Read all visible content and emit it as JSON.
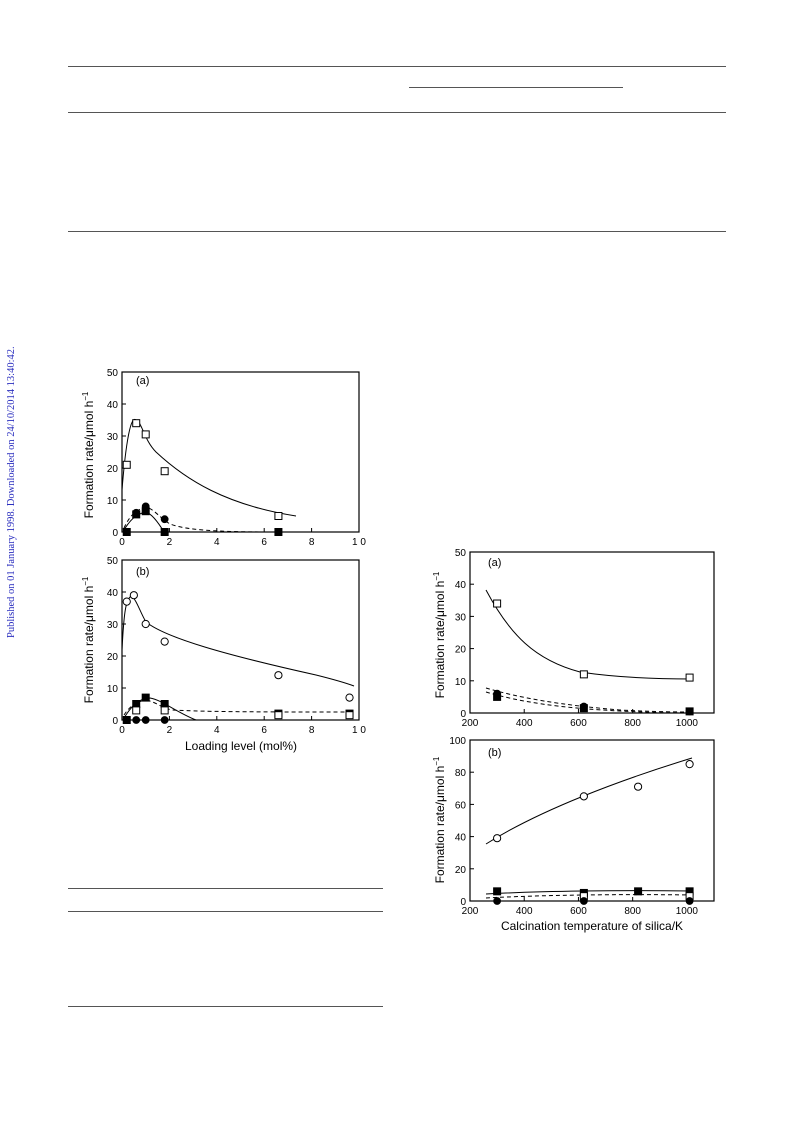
{
  "side_note": "Published on 01 January 1998. Downloaded on 24/10/2014 13:40:42.",
  "figures": {
    "left": {
      "ylabel": "Formation rate/μmol h",
      "ylabel_sup": "−1",
      "xlabel": "Loading level (mol%)",
      "x_ticks": [
        "0",
        "2",
        "4",
        "6",
        "8",
        "1 0"
      ]
    },
    "right": {
      "ylabel": "Formation rate/μmol h",
      "ylabel_sup": "−1",
      "xlabel": "Calcination temperature of silica/K",
      "x_ticks": [
        "200",
        "400",
        "600",
        "800",
        "1000"
      ]
    }
  },
  "chart_data": [
    {
      "type": "scatter",
      "panel_label": "(a)",
      "xlim": [
        0,
        10
      ],
      "ylim": [
        0,
        50
      ],
      "y_ticks": [
        "0",
        "10",
        "20",
        "30",
        "40",
        "50"
      ],
      "series": [
        {
          "marker": "open-square",
          "x": [
            0.2,
            0.6,
            1.0,
            1.8,
            6.6
          ],
          "y": [
            21,
            34,
            30.5,
            19,
            5
          ]
        },
        {
          "marker": "filled-circle",
          "x": [
            0.6,
            1.0,
            1.8
          ],
          "y": [
            6,
            8,
            4
          ]
        },
        {
          "marker": "filled-square",
          "x": [
            0.2,
            0.6,
            1.0,
            1.8,
            6.6
          ],
          "y": [
            0,
            5.5,
            6.5,
            0,
            0
          ]
        }
      ]
    },
    {
      "type": "scatter",
      "panel_label": "(b)",
      "xlim": [
        0,
        10
      ],
      "ylim": [
        0,
        50
      ],
      "y_ticks": [
        "0",
        "10",
        "20",
        "30",
        "40",
        "50"
      ],
      "series": [
        {
          "marker": "open-circle",
          "x": [
            0.2,
            0.5,
            1.0,
            1.8,
            6.6,
            9.6
          ],
          "y": [
            37,
            39,
            30,
            24.5,
            14,
            7
          ]
        },
        {
          "marker": "filled-square",
          "x": [
            0.2,
            0.6,
            1.0,
            1.8,
            6.6,
            9.6
          ],
          "y": [
            0,
            5,
            7,
            5,
            2,
            2
          ]
        },
        {
          "marker": "open-square",
          "x": [
            0.6,
            1.8,
            6.6,
            9.6
          ],
          "y": [
            3,
            3,
            1.5,
            1.5
          ]
        },
        {
          "marker": "filled-circle",
          "x": [
            0.2,
            0.6,
            1.0,
            1.8
          ],
          "y": [
            0,
            0,
            0,
            0
          ]
        }
      ]
    },
    {
      "type": "scatter",
      "panel_label": "(a)",
      "xlim": [
        200,
        1100
      ],
      "ylim": [
        0,
        50
      ],
      "y_ticks": [
        "0",
        "10",
        "20",
        "30",
        "40",
        "50"
      ],
      "series": [
        {
          "marker": "open-square",
          "x": [
            300,
            620,
            1010
          ],
          "y": [
            34,
            12,
            11
          ]
        },
        {
          "marker": "filled-circle",
          "x": [
            300,
            620,
            1010
          ],
          "y": [
            6,
            2,
            0.5
          ]
        },
        {
          "marker": "filled-square",
          "x": [
            300,
            620,
            1010
          ],
          "y": [
            5,
            1.5,
            0.5
          ]
        }
      ]
    },
    {
      "type": "scatter",
      "panel_label": "(b)",
      "xlim": [
        200,
        1100
      ],
      "ylim": [
        0,
        100
      ],
      "y_ticks": [
        "0",
        "20",
        "40",
        "60",
        "80",
        "100"
      ],
      "series": [
        {
          "marker": "open-circle",
          "x": [
            300,
            620,
            820,
            1010
          ],
          "y": [
            39,
            65,
            71,
            85
          ]
        },
        {
          "marker": "filled-square",
          "x": [
            300,
            620,
            820,
            1010
          ],
          "y": [
            6,
            5,
            6,
            6
          ]
        },
        {
          "marker": "open-square",
          "x": [
            620,
            1010
          ],
          "y": [
            3,
            3
          ]
        },
        {
          "marker": "filled-circle",
          "x": [
            300,
            620,
            1010
          ],
          "y": [
            0,
            0,
            0
          ]
        }
      ]
    }
  ]
}
